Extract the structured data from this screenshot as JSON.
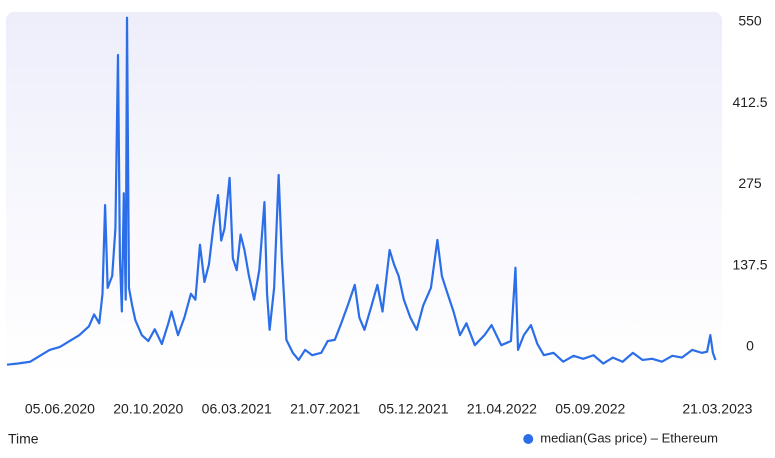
{
  "chart_data": {
    "type": "line",
    "xlabel": "Time",
    "x": [
      "15.03.2020",
      "01.04.2020",
      "20.04.2020",
      "05.05.2020",
      "20.05.2020",
      "05.06.2020",
      "20.06.2020",
      "05.07.2020",
      "20.07.2020",
      "28.07.2020",
      "05.08.2020",
      "10.08.2020",
      "14.08.2020",
      "18.08.2020",
      "25.08.2020",
      "30.08.2020",
      "03.09.2020",
      "06.09.2020",
      "09.09.2020",
      "12.09.2020",
      "15.09.2020",
      "17.09.2020",
      "20.09.2020",
      "25.09.2020",
      "30.09.2020",
      "10.10.2020",
      "20.10.2020",
      "30.10.2020",
      "10.11.2020",
      "20.11.2020",
      "25.11.2020",
      "05.12.2020",
      "15.12.2020",
      "25.12.2020",
      "01.01.2021",
      "08.01.2021",
      "15.01.2021",
      "22.01.2021",
      "29.01.2021",
      "05.02.2021",
      "10.02.2021",
      "15.02.2021",
      "23.02.2021",
      "28.02.2021",
      "06.03.2021",
      "12.03.2021",
      "18.03.2021",
      "25.03.2021",
      "02.04.2021",
      "10.04.2021",
      "18.04.2021",
      "22.04.2021",
      "26.04.2021",
      "03.05.2021",
      "10.05.2021",
      "15.05.2021",
      "22.05.2021",
      "01.06.2021",
      "10.06.2021",
      "20.06.2021",
      "01.07.2021",
      "15.07.2021",
      "25.07.2021",
      "05.08.2021",
      "15.08.2021",
      "25.08.2021",
      "05.09.2021",
      "12.09.2021",
      "20.09.2021",
      "01.10.2021",
      "10.10.2021",
      "18.10.2021",
      "29.10.2021",
      "05.11.2021",
      "12.11.2021",
      "20.11.2021",
      "30.11.2021",
      "10.12.2021",
      "20.12.2021",
      "01.01.2022",
      "11.01.2022",
      "18.01.2022",
      "25.01.2022",
      "05.02.2022",
      "15.02.2022",
      "25.02.2022",
      "10.03.2022",
      "25.03.2022",
      "05.04.2022",
      "20.04.2022",
      "05.05.2022",
      "12.05.2022",
      "16.05.2022",
      "25.05.2022",
      "05.06.2022",
      "15.06.2022",
      "25.06.2022",
      "10.07.2022",
      "25.07.2022",
      "10.08.2022",
      "25.08.2022",
      "10.09.2022",
      "25.09.2022",
      "10.10.2022",
      "25.10.2022",
      "10.11.2022",
      "25.11.2022",
      "10.12.2022",
      "25.12.2022",
      "10.01.2023",
      "25.01.2023",
      "10.02.2023",
      "25.02.2023",
      "05.03.2023",
      "10.03.2023",
      "14.03.2023",
      "18.03.2023"
    ],
    "series": [
      {
        "name": "median(Gas price) – Ethereum",
        "color": "#2b6ee8",
        "values": [
          -30,
          -28,
          -25,
          -15,
          -5,
          0,
          10,
          20,
          35,
          55,
          40,
          90,
          240,
          100,
          120,
          200,
          494,
          150,
          60,
          260,
          80,
          557,
          100,
          70,
          45,
          20,
          10,
          30,
          5,
          40,
          60,
          20,
          50,
          90,
          80,
          173,
          110,
          140,
          205,
          257,
          180,
          200,
          286,
          150,
          130,
          190,
          164,
          120,
          80,
          130,
          245,
          90,
          29,
          100,
          291,
          150,
          12,
          -10,
          -22,
          -5,
          -14,
          -10,
          10,
          12,
          40,
          70,
          105,
          50,
          29,
          70,
          105,
          60,
          164,
          139,
          120,
          80,
          50,
          29,
          70,
          100,
          181,
          120,
          96,
          60,
          20,
          40,
          3,
          20,
          37,
          3,
          10,
          134,
          -5,
          20,
          37,
          5,
          -14,
          -10,
          -25,
          -15,
          -20,
          -14,
          -28,
          -18,
          -25,
          -10,
          -22,
          -20,
          -25,
          -15,
          -18,
          -5,
          -10,
          -8,
          20,
          -10,
          -22
        ]
      }
    ],
    "xlim": [
      "15.03.2020",
      "25.03.2023"
    ],
    "xticks": [
      "05.06.2020",
      "20.10.2020",
      "06.03.2021",
      "21.07.2021",
      "05.12.2021",
      "21.04.2022",
      "05.09.2022",
      "21.03.2023"
    ],
    "ylim": [
      -40,
      565
    ],
    "yticks": [
      0,
      137.5,
      275,
      412.5,
      550
    ],
    "grid": false,
    "legend": "bottom-right"
  }
}
